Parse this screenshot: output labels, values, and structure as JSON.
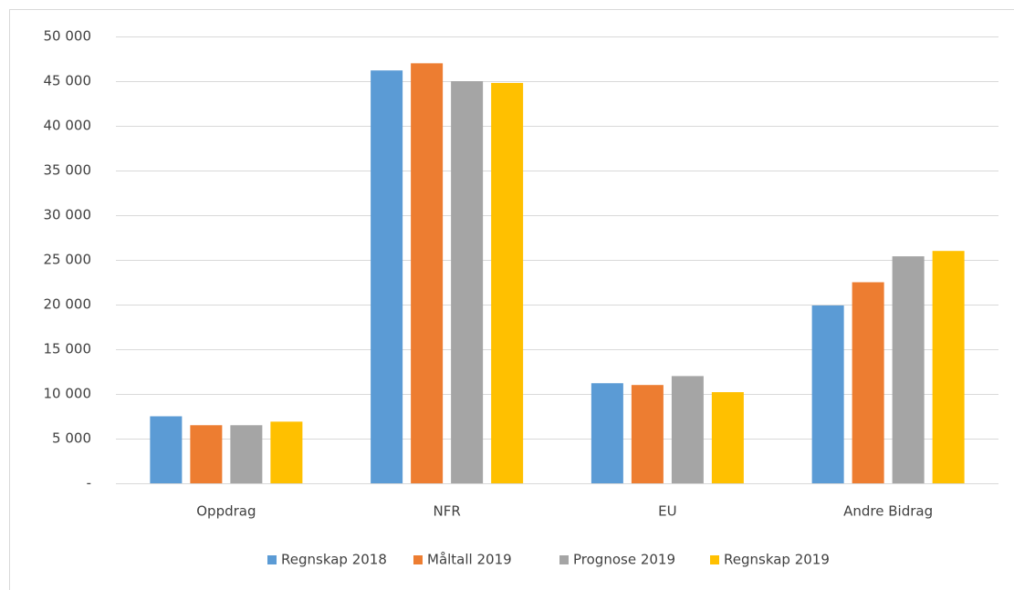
{
  "chart_data": {
    "type": "bar",
    "categories": [
      "Oppdrag",
      "NFR",
      "EU",
      "Andre Bidrag"
    ],
    "series": [
      {
        "name": "Regnskap 2018",
        "color": "#5b9bd5",
        "values": [
          7500,
          46200,
          11200,
          19900
        ]
      },
      {
        "name": "Måltall 2019",
        "color": "#ed7d31",
        "values": [
          6500,
          47000,
          11000,
          22500
        ]
      },
      {
        "name": "Prognose 2019",
        "color": "#a5a5a5",
        "values": [
          6500,
          45000,
          12000,
          25400
        ]
      },
      {
        "name": "Regnskap 2019",
        "color": "#ffc000",
        "values": [
          6900,
          44800,
          10200,
          26000
        ]
      }
    ],
    "ylim": [
      0,
      50000
    ],
    "yticks": [
      {
        "value": 0,
        "label": "-"
      },
      {
        "value": 5000,
        "label": "5 000"
      },
      {
        "value": 10000,
        "label": "10 000"
      },
      {
        "value": 15000,
        "label": "15 000"
      },
      {
        "value": 20000,
        "label": "20 000"
      },
      {
        "value": 25000,
        "label": "25 000"
      },
      {
        "value": 30000,
        "label": "30 000"
      },
      {
        "value": 35000,
        "label": "35 000"
      },
      {
        "value": 40000,
        "label": "40 000"
      },
      {
        "value": 45000,
        "label": "45 000"
      },
      {
        "value": 50000,
        "label": "50 000"
      }
    ],
    "grid": true,
    "legend": "bottom"
  }
}
